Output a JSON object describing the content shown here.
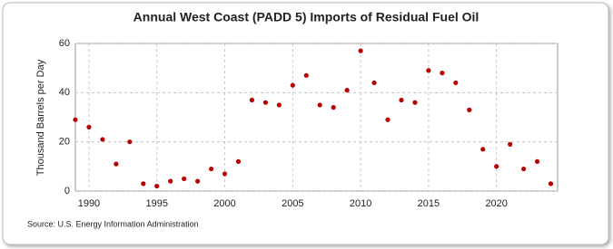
{
  "chart_data": {
    "type": "scatter",
    "title": "Annual West Coast (PADD 5) Imports of Residual Fuel Oil",
    "y_label": "Thousand Barrels per Day",
    "source": "Source: U.S. Energy Information Administration",
    "x": [
      1989,
      1990,
      1991,
      1992,
      1993,
      1994,
      1995,
      1996,
      1997,
      1998,
      1999,
      2000,
      2001,
      2002,
      2003,
      2004,
      2005,
      2006,
      2007,
      2008,
      2009,
      2010,
      2011,
      2012,
      2013,
      2014,
      2015,
      2016,
      2017,
      2018,
      2019,
      2020,
      2021,
      2022,
      2023,
      2024
    ],
    "values": [
      29,
      26,
      21,
      11,
      20,
      3,
      2,
      4,
      5,
      4,
      9,
      7,
      12,
      37,
      36,
      35,
      43,
      47,
      35,
      34,
      41,
      57,
      44,
      29,
      37,
      36,
      49,
      48,
      44,
      33,
      17,
      10,
      19,
      9,
      12,
      3
    ],
    "color": "#b80000",
    "xlim": [
      1989,
      2024.5
    ],
    "xticks": [
      1990,
      1995,
      2000,
      2005,
      2010,
      2015,
      2020
    ],
    "ylim": [
      0,
      60
    ],
    "yticks": [
      0,
      20,
      40,
      60
    ],
    "grid": true
  }
}
